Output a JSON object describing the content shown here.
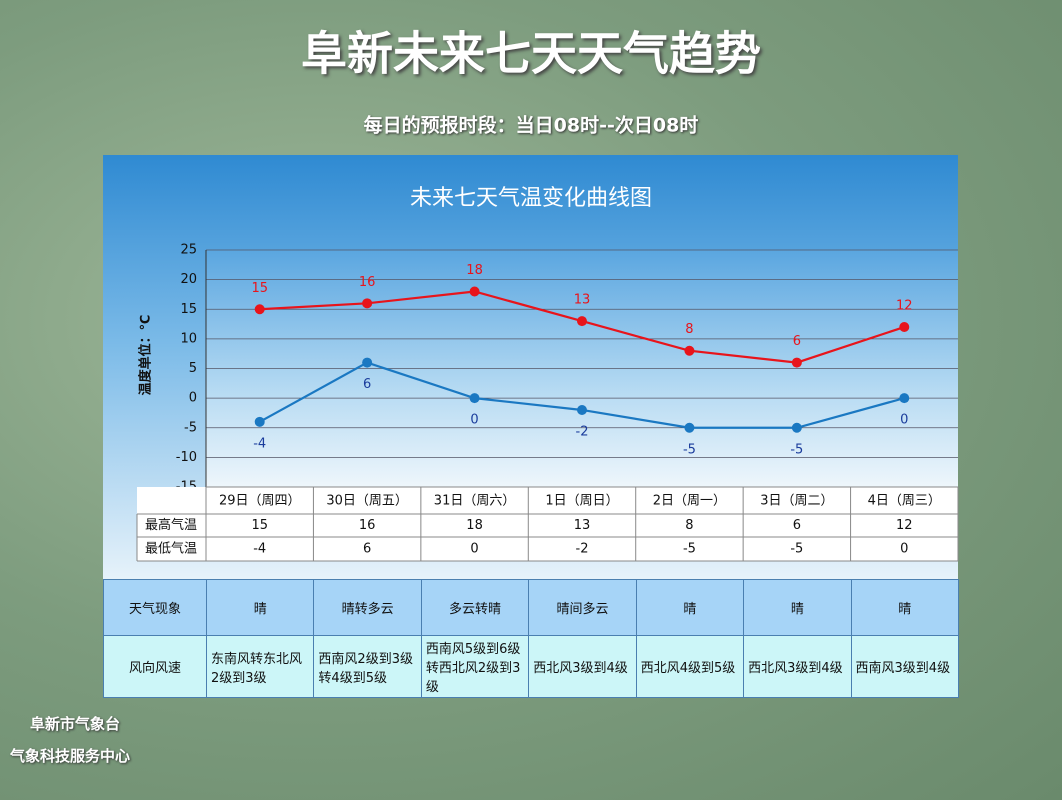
{
  "header": {
    "title": "阜新未来七天天气趋势",
    "subtitle": "每日的预报时段：当日08时--次日08时"
  },
  "chart_data": {
    "type": "line",
    "title": "未来七天气温变化曲线图",
    "y_label": "温度单位：℃",
    "categories": [
      "29日（周四）",
      "30日（周五）",
      "31日（周六）",
      "1日（周日）",
      "2日（周一）",
      "3日（周二）",
      "4日（周三）"
    ],
    "series": [
      {
        "name": "最高气温",
        "color": "#e8141b",
        "values": [
          15,
          16,
          18,
          13,
          8,
          6,
          12
        ]
      },
      {
        "name": "最低气温",
        "color": "#1a78c2",
        "values": [
          -4,
          6,
          0,
          -2,
          -5,
          -5,
          0
        ]
      }
    ],
    "ylim": [
      -15,
      25
    ],
    "yticks": [
      -15,
      -10,
      -5,
      0,
      5,
      10,
      15,
      20,
      25
    ],
    "grid": true
  },
  "weather_table": {
    "rows": [
      {
        "label": "天气现象",
        "cells": [
          "晴",
          "晴转多云",
          "多云转晴",
          "晴间多云",
          "晴",
          "晴",
          "晴"
        ]
      },
      {
        "label": "风向风速",
        "cells": [
          "东南风转东北风2级到3级",
          "西南风2级到3级转4级到5级",
          "西南风5级到6级转西北风2级到3级",
          "西北风3级到4级",
          "西北风4级到5级",
          "西北风3级到4级",
          "西南风3级到4级"
        ]
      }
    ]
  },
  "footer": {
    "lines": [
      "阜新市气象台",
      "气象科技服务中心"
    ]
  }
}
